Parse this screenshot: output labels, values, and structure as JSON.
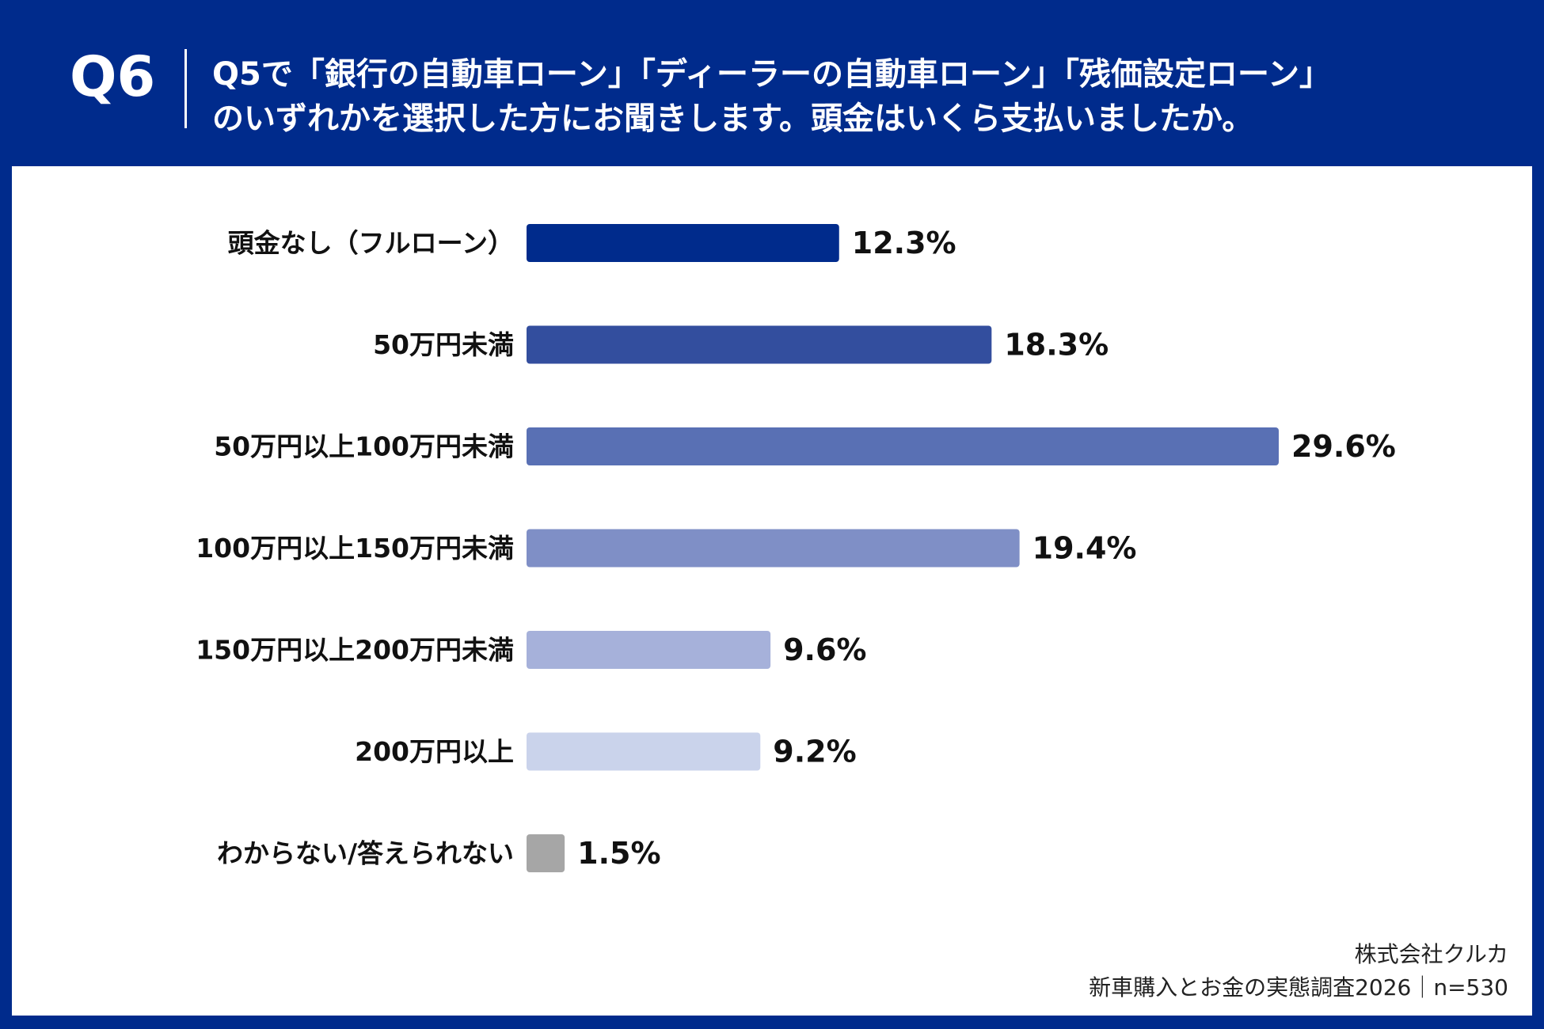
{
  "header": {
    "question_number": "Q6",
    "question_line1": "Q5で「銀行の自動車ローン」「ディーラーの自動車ローン」「残価設定ローン」",
    "question_line2": "のいずれかを選択した方にお聞きします。頭金はいくら支払いましたか。"
  },
  "chart_data": {
    "type": "bar",
    "orientation": "horizontal",
    "categories": [
      "頭金なし（フルローン）",
      "50万円未満",
      "50万円以上100万円未満",
      "100万円以上150万円未満",
      "150万円以上200万円未満",
      "200万円以上",
      "わからない/答えられない"
    ],
    "values": [
      12.3,
      18.3,
      29.6,
      19.4,
      9.6,
      9.2,
      1.5
    ],
    "value_labels": [
      "12.3%",
      "18.3%",
      "29.6%",
      "19.4%",
      "9.6%",
      "9.2%",
      "1.5%"
    ],
    "colors": [
      "#002B8C",
      "#334E9E",
      "#5970B4",
      "#7F8FC6",
      "#A6B1DA",
      "#CAD3EB",
      "#A6A6A6"
    ],
    "unit": "%",
    "xlim": [
      0,
      29.6
    ],
    "grid": false,
    "legend": false
  },
  "footer": {
    "company": "株式会社クルカ",
    "survey": "新車購入とお金の実態調査2026｜n=530"
  }
}
